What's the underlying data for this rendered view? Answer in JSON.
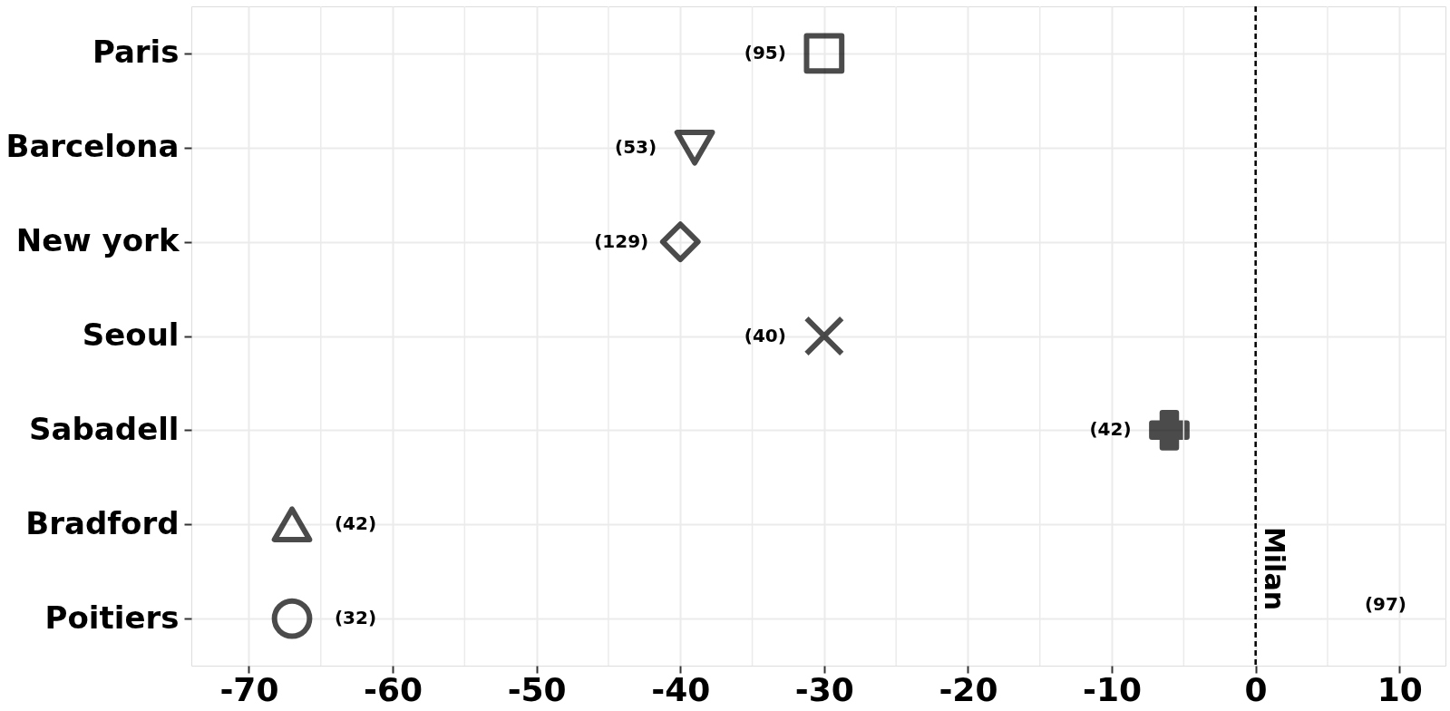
{
  "chart_data": {
    "type": "scatter",
    "categories": [
      "Paris",
      "Barcelona",
      "New york",
      "Seoul",
      "Sabadell",
      "Bradford",
      "Poitiers"
    ],
    "series": [
      {
        "color": "#000000",
        "marker": "square",
        "values": [
          -30,
          null,
          null,
          null,
          null,
          null,
          null
        ]
      },
      {
        "color": "#000000",
        "marker": "triangle",
        "values": [
          null,
          -39,
          null,
          null,
          null,
          null,
          null
        ]
      },
      {
        "color": "#000000",
        "marker": "diamond",
        "values": [
          null,
          null,
          -40,
          null,
          null,
          null,
          null
        ]
      },
      {
        "color": "#000000",
        "marker": "cross",
        "values": [
          null,
          null,
          null,
          -30,
          null,
          null,
          null
        ]
      },
      {
        "color": "#000000",
        "marker": "cross",
        "values": [
          null,
          null,
          null,
          null,
          -6,
          null,
          null
        ]
      },
      {
        "color": "#000000",
        "marker": "triangle",
        "values": [
          null,
          null,
          null,
          null,
          null,
          -67,
          null
        ]
      },
      {
        "color": "#000000",
        "marker": "circle",
        "values": [
          null,
          null,
          null,
          null,
          null,
          null,
          -67
        ]
      }
    ],
    "orientation": "horizontal",
    "xlim": [
      -74,
      13.2
    ],
    "xticks": [
      -70,
      -60,
      -50,
      -40,
      -30,
      -20,
      -10,
      0,
      10
    ],
    "grid": true,
    "ref_lines": [
      {
        "axis": "x",
        "value": 0,
        "label": "Milan",
        "line_style": "dashed",
        "color": "#000000"
      }
    ],
    "annotations": [
      {
        "text": "(95)",
        "x": -30,
        "y": "Paris"
      },
      {
        "text": "(53)",
        "x": -39,
        "y": "Barcelona"
      },
      {
        "text": "(129)",
        "x": -40,
        "y": "New york"
      },
      {
        "text": "(40)",
        "x": -30,
        "y": "Seoul"
      },
      {
        "text": "(42)",
        "x": -6,
        "y": "Sabadell"
      },
      {
        "text": "(42)",
        "x": -67,
        "y": "Bradford"
      },
      {
        "text": "(32)",
        "x": -67,
        "y": "Poitiers"
      },
      "(97)"
    ]
  }
}
